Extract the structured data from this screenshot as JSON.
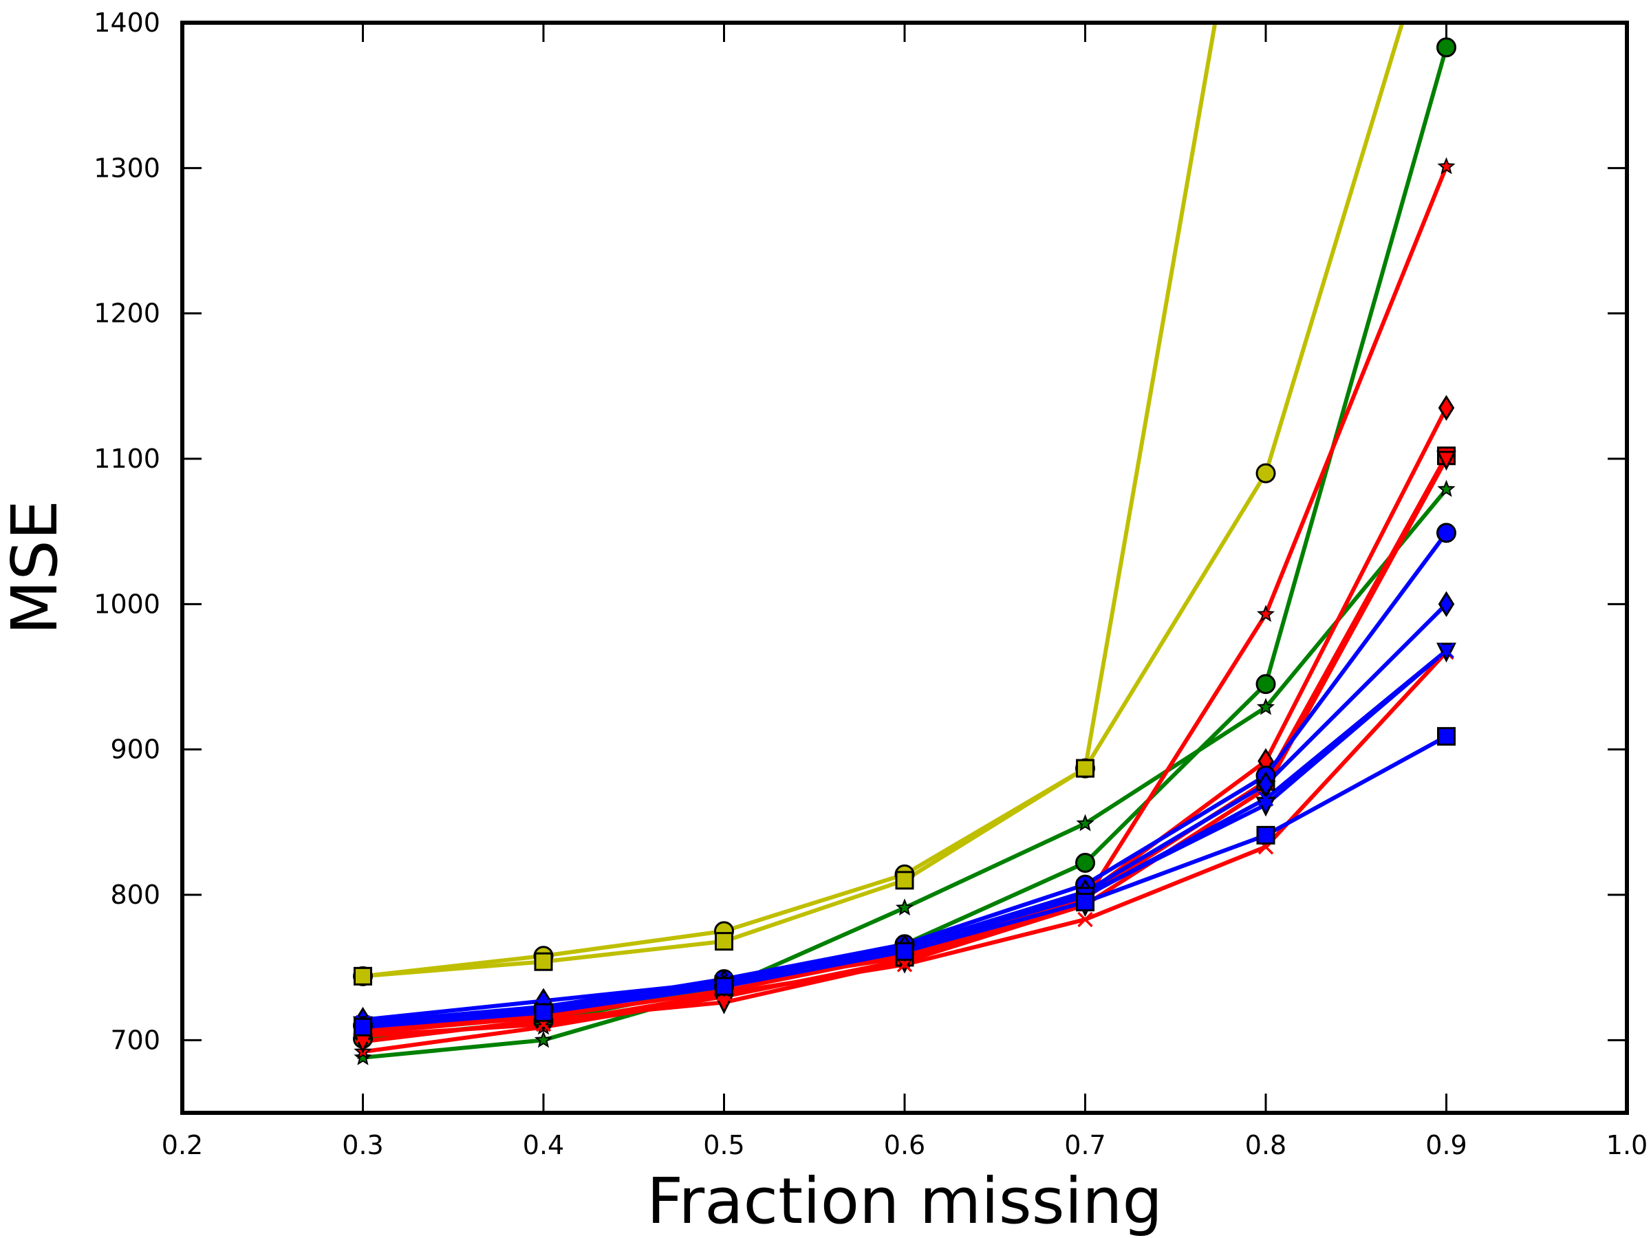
{
  "chart_data": {
    "type": "line",
    "title": "",
    "xlabel": "Fraction missing",
    "ylabel": "MSE",
    "xlim": [
      0.2,
      1.0
    ],
    "ylim": [
      650,
      1400
    ],
    "xticks": [
      "0.2",
      "0.3",
      "0.4",
      "0.5",
      "0.6",
      "0.7",
      "0.8",
      "0.9",
      "1.0"
    ],
    "yticks": [
      "700",
      "800",
      "900",
      "1000",
      "1100",
      "1200",
      "1300",
      "1400"
    ],
    "grid": false,
    "legend": "none",
    "x": [
      0.3,
      0.4,
      0.5,
      0.6,
      0.7,
      0.8,
      0.9
    ],
    "series": [
      {
        "color": "#bfbf00",
        "marker": "circle",
        "values": [
          744,
          758,
          775,
          814,
          887,
          1090,
          1500
        ]
      },
      {
        "color": "#bfbf00",
        "marker": "square",
        "values": [
          744,
          754,
          768,
          810,
          887,
          1600,
          null
        ]
      },
      {
        "color": "#008000",
        "marker": "circle",
        "values": [
          701,
          713,
          737,
          766,
          822,
          945,
          1383
        ]
      },
      {
        "color": "#008000",
        "marker": "star",
        "values": [
          688,
          700,
          736,
          791,
          849,
          929,
          1079
        ]
      },
      {
        "color": "#ff0000",
        "marker": "star",
        "values": [
          692,
          709,
          730,
          755,
          796,
          993,
          1301
        ]
      },
      {
        "color": "#ff0000",
        "marker": "diamond",
        "values": [
          705,
          716,
          734,
          759,
          800,
          892,
          1135
        ]
      },
      {
        "color": "#ff0000",
        "marker": "square",
        "values": [
          707,
          718,
          738,
          757,
          798,
          878,
          1102
        ]
      },
      {
        "color": "#ff0000",
        "marker": "tri_down",
        "values": [
          699,
          714,
          726,
          754,
          793,
          873,
          1100
        ]
      },
      {
        "color": "#ff0000",
        "marker": "x",
        "values": [
          703,
          711,
          732,
          752,
          783,
          833,
          967
        ]
      },
      {
        "color": "#0000ff",
        "marker": "circle",
        "values": [
          710,
          722,
          742,
          766,
          807,
          882,
          1049
        ]
      },
      {
        "color": "#0000ff",
        "marker": "diamond",
        "values": [
          714,
          727,
          740,
          764,
          802,
          876,
          1000
        ]
      },
      {
        "color": "#0000ff",
        "marker": "tri_down",
        "values": [
          711,
          720,
          739,
          762,
          800,
          862,
          968
        ]
      },
      {
        "color": "#0000ff",
        "marker": "x",
        "values": [
          712,
          723,
          741,
          763,
          799,
          866,
          968
        ]
      },
      {
        "color": "#0000ff",
        "marker": "square",
        "values": [
          709,
          719,
          737,
          761,
          795,
          841,
          909
        ]
      }
    ]
  }
}
